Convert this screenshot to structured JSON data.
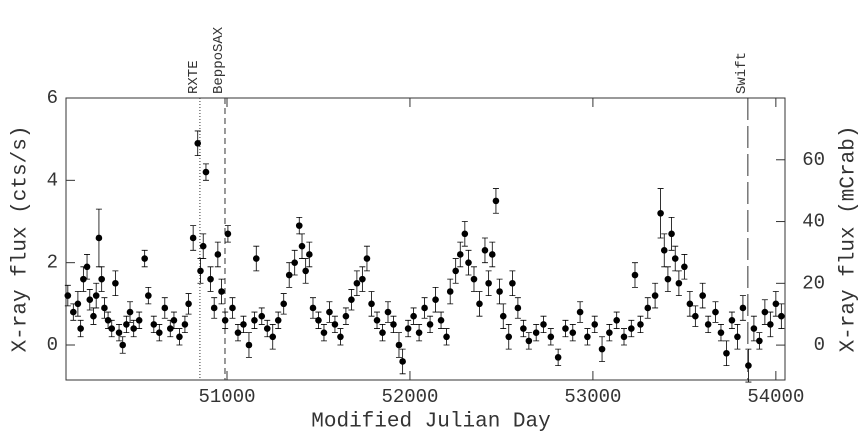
{
  "chart_data": {
    "type": "scatter",
    "xlabel": "Modified Julian Day",
    "ylabel": "X-ray flux (cts/s)",
    "y2label": "X-ray flux (mCrab)",
    "color": "#000000",
    "xlim": [
      50120,
      54050
    ],
    "ylim": [
      -0.85,
      6
    ],
    "y2lim": [
      -11.3,
      80
    ],
    "xticks": [
      51000,
      52000,
      53000,
      54000
    ],
    "yticks": [
      0,
      2,
      4,
      6
    ],
    "y2ticks": [
      0,
      20,
      40,
      60
    ],
    "annotations": [
      {
        "label": "RXTE",
        "x": 50852,
        "style": "dotted"
      },
      {
        "label": "BeppoSAX",
        "x": 50989,
        "style": "dashed"
      },
      {
        "label": "Swift",
        "x": 53847,
        "style": "longdash"
      }
    ],
    "x": [
      50130,
      50160,
      50185,
      50200,
      50215,
      50235,
      50250,
      50270,
      50285,
      50300,
      50315,
      50330,
      50350,
      50370,
      50390,
      50410,
      50430,
      50450,
      50470,
      50490,
      50520,
      50550,
      50570,
      50600,
      50630,
      50660,
      50690,
      50710,
      50740,
      50770,
      50790,
      50815,
      50840,
      50855,
      50870,
      50885,
      50910,
      50930,
      50950,
      50970,
      50990,
      51005,
      51030,
      51060,
      51090,
      51120,
      51150,
      51160,
      51190,
      51220,
      51250,
      51280,
      51310,
      51340,
      51370,
      51395,
      51410,
      51430,
      51450,
      51470,
      51500,
      51530,
      51560,
      51590,
      51620,
      51650,
      51680,
      51710,
      51740,
      51765,
      51790,
      51820,
      51850,
      51880,
      51910,
      51940,
      51960,
      51990,
      52020,
      52050,
      52080,
      52110,
      52140,
      52170,
      52200,
      52220,
      52250,
      52275,
      52300,
      52320,
      52350,
      52380,
      52410,
      52430,
      52450,
      52470,
      52490,
      52510,
      52540,
      52560,
      52590,
      52620,
      52650,
      52690,
      52730,
      52770,
      52810,
      52850,
      52890,
      52930,
      52970,
      53010,
      53050,
      53090,
      53130,
      53170,
      53210,
      53230,
      53260,
      53300,
      53340,
      53370,
      53390,
      53410,
      53430,
      53450,
      53470,
      53500,
      53530,
      53560,
      53600,
      53630,
      53670,
      53700,
      53730,
      53760,
      53790,
      53820,
      53850,
      53880,
      53910,
      53940,
      53970,
      54000,
      54030
    ],
    "values": [
      1.2,
      0.8,
      1.0,
      0.4,
      1.6,
      1.9,
      1.1,
      0.7,
      1.2,
      2.6,
      1.6,
      0.9,
      0.6,
      0.4,
      1.5,
      0.3,
      0.0,
      0.5,
      0.8,
      0.4,
      0.6,
      2.1,
      1.2,
      0.5,
      0.3,
      0.9,
      0.4,
      0.6,
      0.2,
      0.5,
      1.0,
      2.6,
      4.9,
      1.8,
      2.4,
      4.2,
      1.6,
      0.9,
      2.2,
      1.3,
      0.6,
      2.7,
      0.9,
      0.3,
      0.5,
      0.0,
      0.6,
      2.1,
      0.7,
      0.4,
      0.2,
      0.6,
      1.0,
      1.7,
      2.0,
      2.9,
      2.4,
      1.8,
      2.2,
      0.9,
      0.6,
      0.3,
      0.8,
      0.5,
      0.2,
      0.7,
      1.1,
      1.5,
      1.6,
      2.1,
      1.0,
      0.6,
      0.3,
      0.8,
      0.5,
      0.0,
      -0.4,
      0.4,
      0.7,
      0.3,
      0.9,
      0.5,
      1.1,
      0.6,
      0.2,
      1.3,
      1.8,
      2.2,
      2.7,
      2.0,
      1.6,
      1.0,
      2.3,
      1.5,
      2.2,
      3.5,
      1.3,
      0.7,
      0.2,
      1.5,
      0.9,
      0.4,
      0.1,
      0.3,
      0.5,
      0.2,
      -0.3,
      0.4,
      0.3,
      0.8,
      0.2,
      0.5,
      -0.1,
      0.3,
      0.6,
      0.2,
      0.4,
      1.7,
      0.5,
      0.9,
      1.2,
      3.2,
      2.3,
      1.6,
      2.7,
      2.1,
      1.5,
      1.9,
      1.0,
      0.7,
      1.2,
      0.5,
      0.8,
      0.3,
      -0.2,
      0.6,
      0.2,
      0.9,
      -0.5,
      0.4,
      0.1,
      0.8,
      0.5,
      1.0,
      0.7
    ],
    "errors": [
      0.25,
      0.2,
      0.3,
      0.2,
      0.3,
      0.3,
      0.25,
      0.2,
      0.3,
      0.7,
      0.3,
      0.25,
      0.2,
      0.2,
      0.3,
      0.2,
      0.2,
      0.2,
      0.25,
      0.2,
      0.2,
      0.2,
      0.2,
      0.2,
      0.2,
      0.25,
      0.2,
      0.2,
      0.2,
      0.2,
      0.25,
      0.3,
      0.3,
      0.3,
      0.3,
      0.2,
      0.3,
      0.25,
      0.3,
      0.3,
      0.2,
      0.2,
      0.25,
      0.2,
      0.2,
      0.3,
      0.2,
      0.3,
      0.2,
      0.2,
      0.3,
      0.2,
      0.25,
      0.3,
      0.3,
      0.2,
      0.3,
      0.3,
      0.3,
      0.25,
      0.2,
      0.2,
      0.25,
      0.2,
      0.2,
      0.2,
      0.25,
      0.3,
      0.3,
      0.3,
      0.3,
      0.2,
      0.2,
      0.25,
      0.2,
      0.3,
      0.3,
      0.2,
      0.2,
      0.2,
      0.25,
      0.2,
      0.3,
      0.2,
      0.2,
      0.3,
      0.3,
      0.3,
      0.3,
      0.3,
      0.3,
      0.3,
      0.3,
      0.3,
      0.3,
      0.3,
      0.3,
      0.3,
      0.3,
      0.3,
      0.25,
      0.2,
      0.2,
      0.2,
      0.2,
      0.2,
      0.2,
      0.2,
      0.2,
      0.25,
      0.2,
      0.2,
      0.3,
      0.2,
      0.2,
      0.2,
      0.2,
      0.3,
      0.2,
      0.25,
      0.3,
      0.6,
      0.4,
      0.3,
      0.4,
      0.3,
      0.3,
      0.3,
      0.3,
      0.25,
      0.3,
      0.2,
      0.25,
      0.2,
      0.3,
      0.2,
      0.3,
      0.3,
      0.4,
      0.3,
      0.2,
      0.3,
      0.3,
      0.3,
      0.3
    ]
  }
}
